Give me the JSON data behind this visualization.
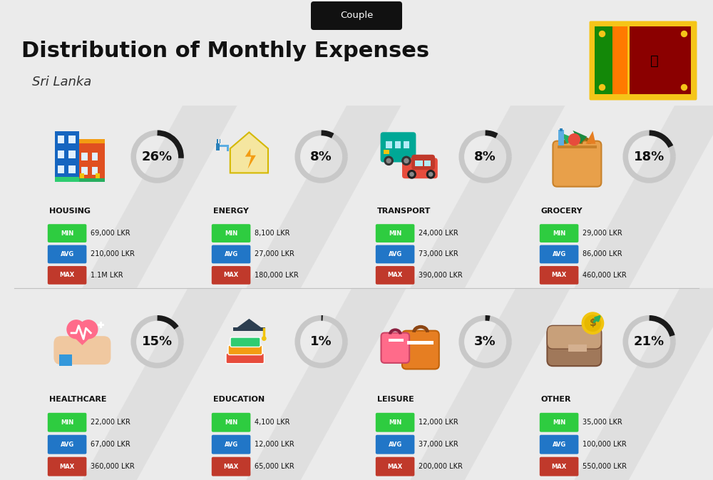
{
  "title": "Distribution of Monthly Expenses",
  "subtitle": "Sri Lanka",
  "badge": "Couple",
  "bg_color": "#ebebeb",
  "categories": [
    {
      "name": "HOUSING",
      "pct": 26,
      "min": "69,000 LKR",
      "avg": "210,000 LKR",
      "max": "1.1M LKR",
      "row": 0,
      "col": 0
    },
    {
      "name": "ENERGY",
      "pct": 8,
      "min": "8,100 LKR",
      "avg": "27,000 LKR",
      "max": "180,000 LKR",
      "row": 0,
      "col": 1
    },
    {
      "name": "TRANSPORT",
      "pct": 8,
      "min": "24,000 LKR",
      "avg": "73,000 LKR",
      "max": "390,000 LKR",
      "row": 0,
      "col": 2
    },
    {
      "name": "GROCERY",
      "pct": 18,
      "min": "29,000 LKR",
      "avg": "86,000 LKR",
      "max": "460,000 LKR",
      "row": 0,
      "col": 3
    },
    {
      "name": "HEALTHCARE",
      "pct": 15,
      "min": "22,000 LKR",
      "avg": "67,000 LKR",
      "max": "360,000 LKR",
      "row": 1,
      "col": 0
    },
    {
      "name": "EDUCATION",
      "pct": 1,
      "min": "4,100 LKR",
      "avg": "12,000 LKR",
      "max": "65,000 LKR",
      "row": 1,
      "col": 1
    },
    {
      "name": "LEISURE",
      "pct": 3,
      "min": "12,000 LKR",
      "avg": "37,000 LKR",
      "max": "200,000 LKR",
      "row": 1,
      "col": 2
    },
    {
      "name": "OTHER",
      "pct": 21,
      "min": "35,000 LKR",
      "avg": "100,000 LKR",
      "max": "550,000 LKR",
      "row": 1,
      "col": 3
    }
  ],
  "min_color": "#2ecc40",
  "avg_color": "#2176c7",
  "max_color": "#c0392b",
  "arc_dark": "#1a1a1a",
  "arc_light": "#c8c8c8",
  "title_color": "#111111",
  "subtitle_color": "#333333",
  "badge_bg": "#111111",
  "badge_fg": "#ffffff",
  "stripe_color": "#d8d8d8"
}
